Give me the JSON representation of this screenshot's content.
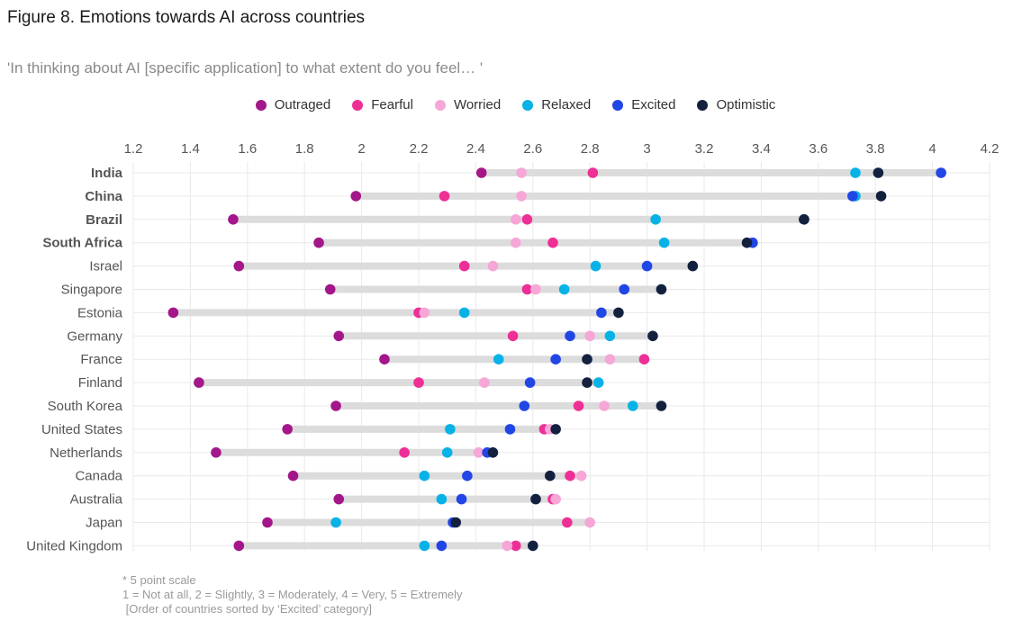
{
  "title": "Figure 8. Emotions towards AI across countries",
  "subtitle": "'In thinking about AI [specific application] to what extent do you feel… '",
  "notes": [
    "* 5 point scale",
    "1 = Not at all, 2 = Slightly, 3 = Moderately, 4 = Very, 5 = Extremely",
    " [Order of countries sorted by ‘Excited’ category]"
  ],
  "colors": {
    "Outraged": "#a3178a",
    "Fearful": "#ee2f96",
    "Worried": "#f6a6d7",
    "Relaxed": "#07b2e6",
    "Excited": "#2146e6",
    "Optimistic": "#13213f",
    "range_bar": "#dcdcdc",
    "grid": "#e9e9e9"
  },
  "chart_data": {
    "type": "dot-range",
    "xlim": [
      1.2,
      4.2
    ],
    "x_ticks": [
      "1.2",
      "1.4",
      "1.6",
      "1.8",
      "2",
      "2.2",
      "2.4",
      "2.6",
      "2.8",
      "3",
      "3.2",
      "3.4",
      "3.6",
      "3.8",
      "4",
      "4.2"
    ],
    "legend_position": "top-center",
    "grid": true,
    "series_names": [
      "Outraged",
      "Fearful",
      "Worried",
      "Relaxed",
      "Excited",
      "Optimistic"
    ],
    "bold_categories": [
      "India",
      "China",
      "Brazil",
      "South Africa"
    ],
    "categories": [
      "India",
      "China",
      "Brazil",
      "South Africa",
      "Israel",
      "Singapore",
      "Estonia",
      "Germany",
      "France",
      "Finland",
      "South Korea",
      "United States",
      "Netherlands",
      "Canada",
      "Australia",
      "Japan",
      "United Kingdom"
    ],
    "series": [
      {
        "name": "Outraged",
        "values": [
          2.42,
          1.98,
          1.55,
          1.85,
          1.57,
          1.89,
          1.34,
          1.92,
          2.08,
          1.43,
          1.91,
          1.74,
          1.49,
          1.76,
          1.92,
          1.67,
          1.57
        ]
      },
      {
        "name": "Fearful",
        "values": [
          2.81,
          2.29,
          2.58,
          2.67,
          2.36,
          2.58,
          2.2,
          2.53,
          2.99,
          2.2,
          2.76,
          2.64,
          2.15,
          2.73,
          2.67,
          2.72,
          2.54
        ]
      },
      {
        "name": "Worried",
        "values": [
          2.56,
          2.56,
          2.54,
          2.54,
          2.46,
          2.61,
          2.22,
          2.8,
          2.87,
          2.43,
          2.85,
          2.66,
          2.41,
          2.77,
          2.68,
          2.8,
          2.51
        ]
      },
      {
        "name": "Relaxed",
        "values": [
          3.73,
          3.73,
          3.03,
          3.06,
          2.82,
          2.71,
          2.36,
          2.87,
          2.48,
          2.83,
          2.95,
          2.31,
          2.3,
          2.22,
          2.28,
          1.91,
          2.22
        ]
      },
      {
        "name": "Excited",
        "values": [
          4.03,
          3.72,
          3.55,
          3.37,
          3.0,
          2.92,
          2.84,
          2.73,
          2.68,
          2.59,
          2.57,
          2.52,
          2.44,
          2.37,
          2.35,
          2.32,
          2.28
        ]
      },
      {
        "name": "Optimistic",
        "values": [
          3.81,
          3.82,
          3.55,
          3.35,
          3.16,
          3.05,
          2.9,
          3.02,
          2.79,
          2.79,
          3.05,
          2.68,
          2.46,
          2.66,
          2.61,
          2.33,
          2.6
        ]
      }
    ]
  }
}
